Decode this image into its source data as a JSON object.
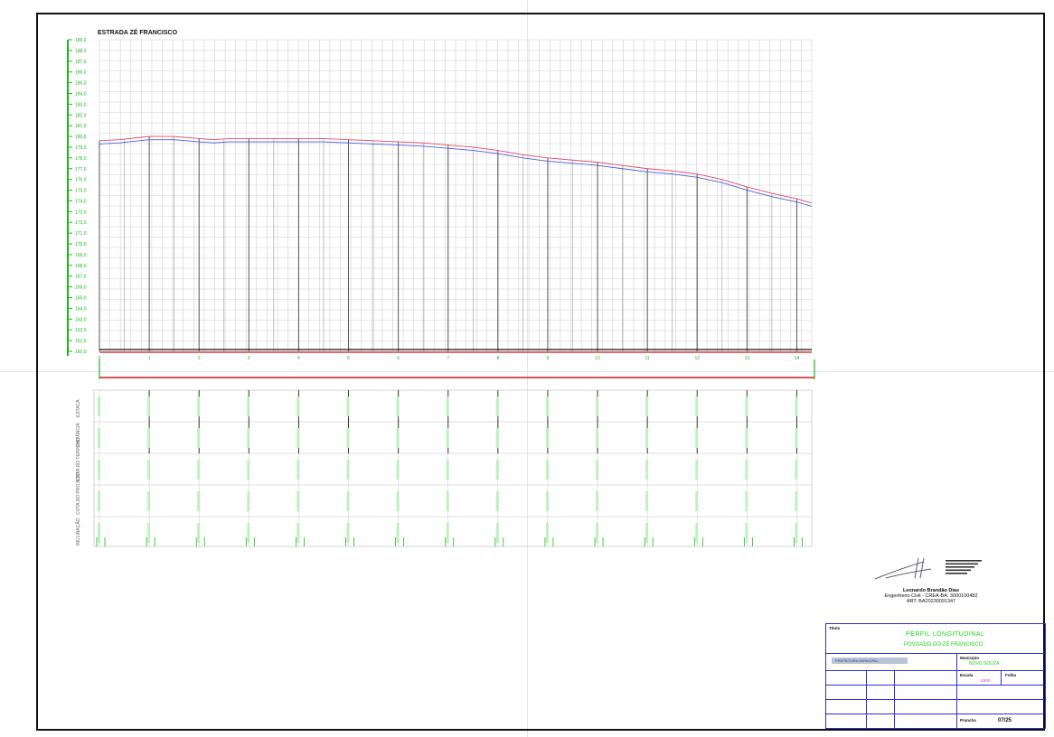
{
  "drawing": {
    "title": "ESTRADA ZÉ FRANCISCO"
  },
  "chart_data": {
    "type": "line",
    "title": "ESTRADA ZÉ FRANCISCO",
    "y_tick_labels": [
      "189,0",
      "188,0",
      "187,0",
      "186,0",
      "185,0",
      "184,0",
      "183,0",
      "182,0",
      "181,0",
      "180,0",
      "179,0",
      "178,0",
      "177,0",
      "176,0",
      "175,0",
      "174,0",
      "173,0",
      "172,0",
      "171,0",
      "170,0",
      "169,0",
      "168,0",
      "167,0",
      "166,0",
      "165,0",
      "164,0",
      "163,0",
      "162,0",
      "161,0",
      "160,0"
    ],
    "ylim": [
      160,
      189
    ],
    "x_tick_labels": [
      "0",
      "1",
      "2",
      "3",
      "4",
      "5",
      "6",
      "7",
      "8",
      "9",
      "10",
      "11",
      "12",
      "13",
      "14"
    ],
    "xlim": [
      0,
      14.3
    ],
    "series": [
      {
        "x": [
          0,
          0.4,
          0.8,
          1.0,
          1.5,
          2.0,
          2.3,
          2.6,
          3.0,
          3.5,
          4.0,
          4.5,
          5.0,
          5.5,
          6.0,
          6.5,
          7.0,
          7.5,
          8.0,
          8.5,
          9.0,
          9.5,
          10.0,
          10.5,
          11.0,
          11.5,
          12.0,
          12.5,
          13.0,
          13.5,
          14.0,
          14.3
        ],
        "y": [
          179.6,
          179.7,
          179.9,
          180.0,
          180.0,
          179.8,
          179.7,
          179.8,
          179.8,
          179.8,
          179.8,
          179.8,
          179.7,
          179.6,
          179.5,
          179.4,
          179.2,
          179.0,
          178.7,
          178.3,
          178.0,
          177.8,
          177.6,
          177.3,
          177.0,
          176.8,
          176.5,
          176.0,
          175.3,
          174.7,
          174.2,
          173.8
        ]
      },
      {
        "x": [
          0,
          0.4,
          0.8,
          1.0,
          1.5,
          2.0,
          2.3,
          2.6,
          3.0,
          3.5,
          4.0,
          4.5,
          5.0,
          5.5,
          6.0,
          6.5,
          7.0,
          7.5,
          8.0,
          8.5,
          9.0,
          9.5,
          10.0,
          10.5,
          11.0,
          11.5,
          12.0,
          12.5,
          13.0,
          13.5,
          14.0,
          14.3
        ],
        "y": [
          179.3,
          179.4,
          179.6,
          179.7,
          179.7,
          179.5,
          179.4,
          179.5,
          179.5,
          179.5,
          179.5,
          179.5,
          179.4,
          179.3,
          179.2,
          179.1,
          178.9,
          178.7,
          178.4,
          178.0,
          177.7,
          177.5,
          177.3,
          177.0,
          176.7,
          176.5,
          176.2,
          175.7,
          175.0,
          174.4,
          173.9,
          173.5
        ]
      }
    ],
    "grid": true
  },
  "rows": [
    {
      "label": "ESTACA"
    },
    {
      "label": "DISTÂNCIA"
    },
    {
      "label": "COTA DO TERRENO"
    },
    {
      "label": "COTA DO PROJETO"
    },
    {
      "label": "INCLINAÇÃO"
    }
  ],
  "signature": {
    "name": "Leonardo Brandão Dias",
    "title": "Engenheiro Civil - CREA-BA: 3000100482",
    "art": "ART: BA20230091347"
  },
  "title_block": {
    "header": "Título",
    "main_title": "PERFIL LONGITUDINAL",
    "subtitle": "POVOADO DO ZÉ FRANCISCO",
    "logo_text": "PREFEITURA MUNICIPAL",
    "municipio_label": "Município",
    "municipio_value": "NOVO SOUZA",
    "escala_label": "Escala",
    "escala_value": "1/500",
    "folha_label": "Folha",
    "prancha_label": "Prancha",
    "prancha_value": "07/25"
  }
}
